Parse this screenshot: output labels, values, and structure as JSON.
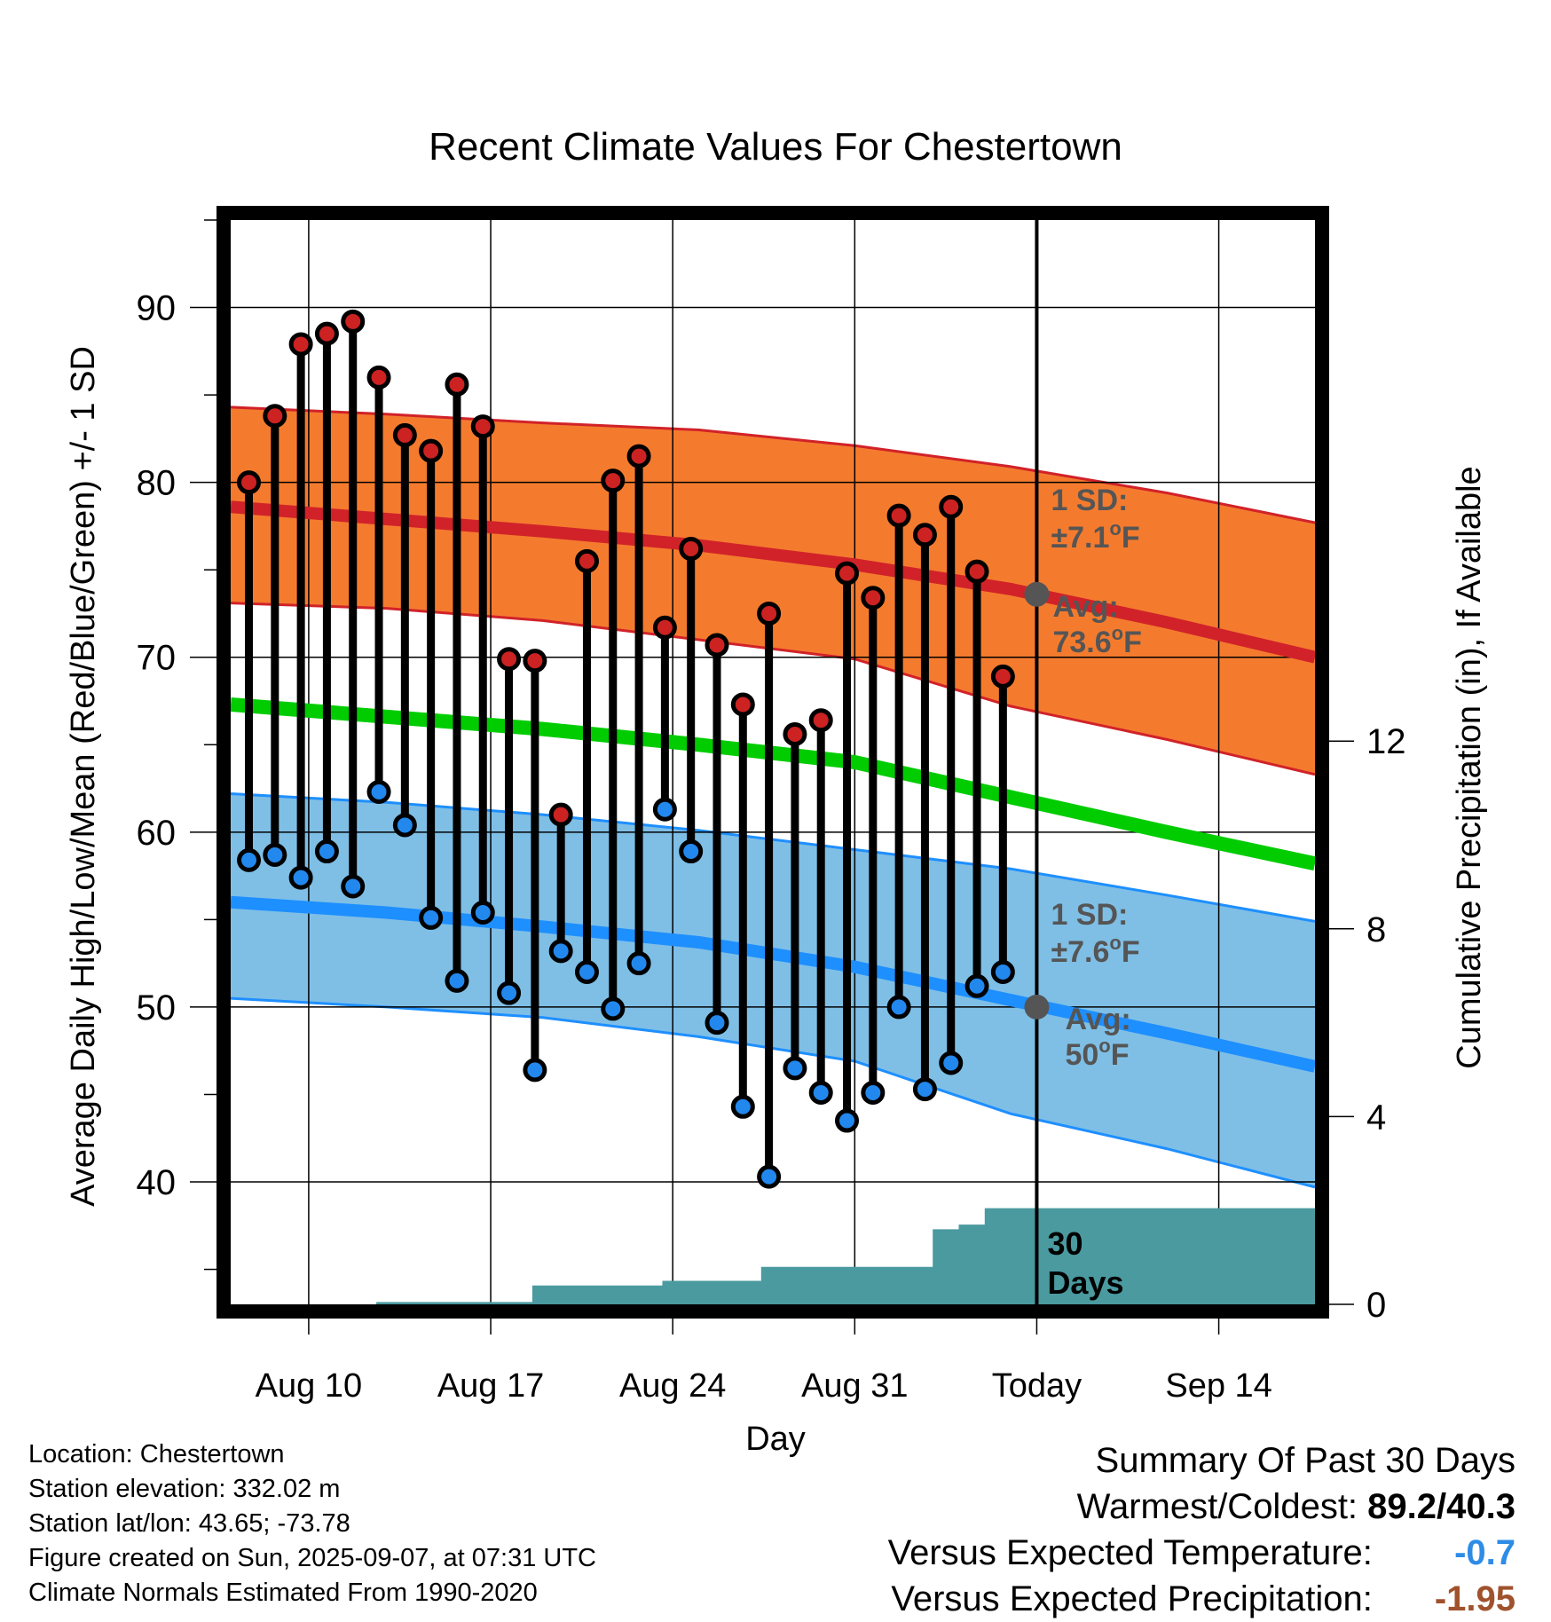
{
  "chart_data": {
    "type": "line",
    "title": "Recent Climate Values For Chestertown",
    "xlabel": "Day",
    "ylabel_left": "Average Daily High/Low/Mean (Red/Blue/Green) +/- 1 SD",
    "ylabel_right": "Cumulative Precipitation (in), If Available",
    "ylim_left": [
      33,
      95
    ],
    "ylim_right": [
      0,
      23.1
    ],
    "yticks_left": [
      40,
      50,
      60,
      70,
      80,
      90
    ],
    "yticks_right": [
      0,
      4,
      8,
      12
    ],
    "x_tick_labels": [
      {
        "day": 3,
        "label": "Aug 10"
      },
      {
        "day": 10,
        "label": "Aug 17"
      },
      {
        "day": 17,
        "label": "Aug 24"
      },
      {
        "day": 24,
        "label": "Aug 31"
      },
      {
        "day": 31,
        "label": "Today"
      },
      {
        "day": 38,
        "label": "Sep 14"
      }
    ],
    "x_range_days": [
      0,
      41.7
    ],
    "today_day": 31,
    "grid": true,
    "colors": {
      "high_band": "#f47b2e",
      "high_line": "#d12229",
      "low_band": "#7fbfe6",
      "low_line": "#1e8fff",
      "mean_line": "#00cc00",
      "high_marker": "#cc2222",
      "low_marker": "#2288ee",
      "precip_fill": "#4a9aa0",
      "annotation": "#555555",
      "negative_temp": "#2e8ce6",
      "negative_precip": "#a0522d"
    },
    "normals": {
      "day": [
        0,
        6,
        12,
        18,
        24,
        30,
        36,
        41.7
      ],
      "high_mean": [
        78.6,
        77.9,
        77.2,
        76.4,
        75.3,
        73.9,
        72.0,
        70.0
      ],
      "high_upper": [
        84.3,
        83.9,
        83.4,
        83.0,
        82.1,
        80.9,
        79.4,
        77.7
      ],
      "high_lower": [
        73.1,
        72.8,
        72.1,
        71.0,
        69.9,
        67.2,
        65.3,
        63.3
      ],
      "low_mean": [
        56.0,
        55.4,
        54.6,
        53.7,
        52.3,
        50.4,
        48.5,
        46.6
      ],
      "low_upper": [
        62.2,
        61.7,
        61.0,
        60.1,
        59.0,
        57.9,
        56.4,
        54.9
      ],
      "low_lower": [
        50.5,
        50.0,
        49.4,
        48.3,
        46.9,
        43.9,
        41.9,
        39.7
      ],
      "mean": [
        67.3,
        66.6,
        65.9,
        65.0,
        64.0,
        62.0,
        60.0,
        58.2
      ]
    },
    "series": [
      {
        "name": "High",
        "x": [
          0.7,
          1.7,
          2.7,
          3.7,
          4.7,
          5.7,
          6.7,
          7.7,
          8.7,
          9.7,
          10.7,
          11.7,
          12.7,
          13.7,
          14.7,
          15.7,
          16.7,
          17.7,
          18.7,
          19.7,
          20.7,
          21.7,
          22.7,
          23.7,
          24.7,
          25.7,
          26.7,
          27.7,
          28.7,
          29.7
        ],
        "values": [
          80.0,
          83.8,
          87.9,
          88.5,
          89.2,
          86.0,
          82.7,
          81.8,
          85.6,
          83.2,
          69.9,
          69.8,
          61.0,
          75.5,
          80.1,
          81.5,
          71.7,
          76.2,
          70.7,
          67.3,
          72.5,
          65.6,
          66.4,
          74.8,
          73.4,
          78.1,
          77.0,
          78.6,
          74.9,
          68.9
        ]
      },
      {
        "name": "Low",
        "x": [
          0.7,
          1.7,
          2.7,
          3.7,
          4.7,
          5.7,
          6.7,
          7.7,
          8.7,
          9.7,
          10.7,
          11.7,
          12.7,
          13.7,
          14.7,
          15.7,
          16.7,
          17.7,
          18.7,
          19.7,
          20.7,
          21.7,
          22.7,
          23.7,
          24.7,
          25.7,
          26.7,
          27.7,
          28.7,
          29.7
        ],
        "values": [
          58.4,
          58.7,
          57.4,
          58.9,
          56.9,
          62.3,
          60.4,
          55.1,
          51.5,
          55.4,
          50.8,
          46.4,
          53.2,
          52.0,
          49.9,
          52.5,
          61.3,
          58.9,
          49.1,
          44.3,
          40.3,
          46.5,
          45.1,
          43.5,
          45.1,
          50.0,
          45.3,
          46.8,
          51.2,
          52.0
        ]
      },
      {
        "name": "Cumulative precipitation",
        "x": [
          0,
          5.6,
          5.6,
          11.6,
          11.6,
          16.6,
          16.6,
          20.4,
          20.4,
          23.0,
          23.0,
          27.0,
          27.0,
          28.0,
          28.0,
          29.0,
          29.0,
          41.7
        ],
        "values": [
          0,
          0,
          0.05,
          0.05,
          0.4,
          0.4,
          0.5,
          0.5,
          0.8,
          0.8,
          0.8,
          0.8,
          1.6,
          1.6,
          1.7,
          1.7,
          2.05,
          2.05
        ]
      }
    ],
    "annotations": {
      "high_sd_line1": "1 SD:",
      "high_sd_line2": "±7.1°F",
      "high_avg_line1": "Avg:",
      "high_avg_line2": "73.6°F",
      "high_avg_value": 73.6,
      "low_sd_line1": "1 SD:",
      "low_sd_line2": "±7.6°F",
      "low_avg_line1": "Avg:",
      "low_avg_line2": "50°F",
      "low_avg_value": 50.0,
      "precip_line1": "30",
      "precip_line2": "Days"
    }
  },
  "footer": {
    "location": "Location: Chestertown",
    "elevation": "Station elevation: 332.02 m",
    "latlon": "Station lat/lon: 43.65; -73.78",
    "created": "Figure created on Sun, 2025-09-07, at 07:31 UTC",
    "normals": "Climate Normals Estimated From 1990-2020"
  },
  "summary": {
    "title": "Summary Of Past 30 Days",
    "warm_cold_label": "Warmest/Coldest:",
    "warm_cold_value": "89.2/40.3",
    "temp_label": "Versus Expected Temperature:",
    "temp_value": "-0.7",
    "precip_label": "Versus Expected Precipitation:",
    "precip_value": "-1.95"
  }
}
